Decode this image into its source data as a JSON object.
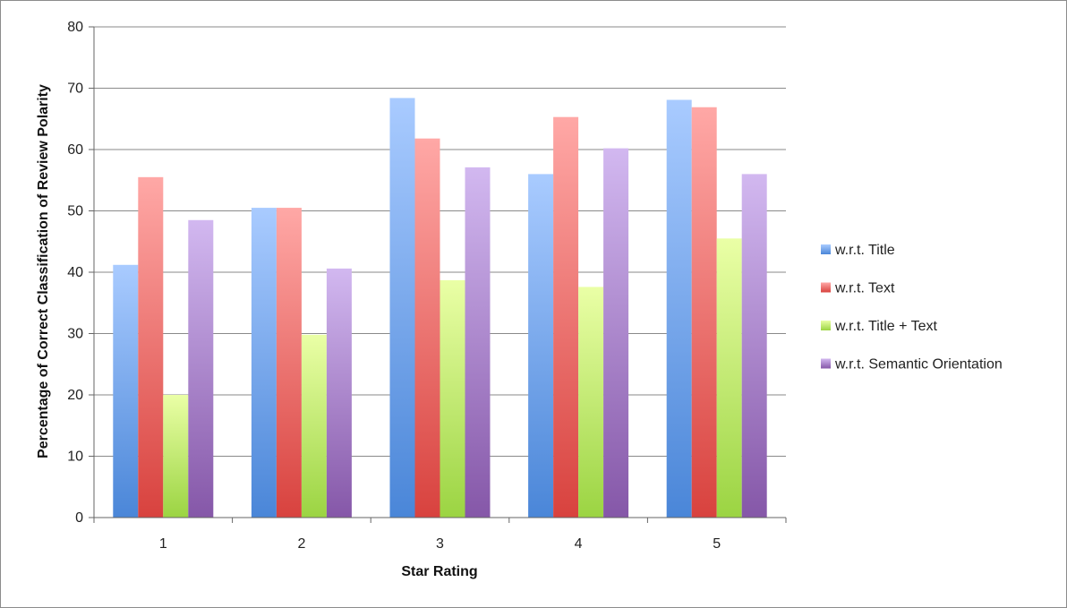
{
  "chart_data": {
    "type": "bar",
    "title": "",
    "xlabel": "Star Rating",
    "ylabel": "Percentage of Correct Classification of Review Polarity",
    "categories": [
      "1",
      "2",
      "3",
      "4",
      "5"
    ],
    "ylim": [
      0,
      80
    ],
    "yticks": [
      "0",
      "10",
      "20",
      "30",
      "40",
      "50",
      "60",
      "70",
      "80"
    ],
    "grid": true,
    "legend_position": "right",
    "series": [
      {
        "name": "w.r.t. Title",
        "values": [
          41.2,
          50.5,
          68.4,
          56.0,
          68.1
        ],
        "color": "#4a86d8",
        "light": "#a9cbff"
      },
      {
        "name": "w.r.t. Text",
        "values": [
          55.5,
          50.5,
          61.8,
          65.3,
          66.9
        ],
        "color": "#d8423e",
        "light": "#ffa8a6"
      },
      {
        "name": "w.r.t. Title + Text",
        "values": [
          20.0,
          29.8,
          38.7,
          37.6,
          45.5
        ],
        "color": "#9bd442",
        "light": "#eaffa6"
      },
      {
        "name": "w.r.t. Semantic Orientation",
        "values": [
          48.5,
          40.6,
          57.1,
          60.2,
          56.0
        ],
        "color": "#8557a8",
        "light": "#d2b8f0"
      }
    ]
  }
}
